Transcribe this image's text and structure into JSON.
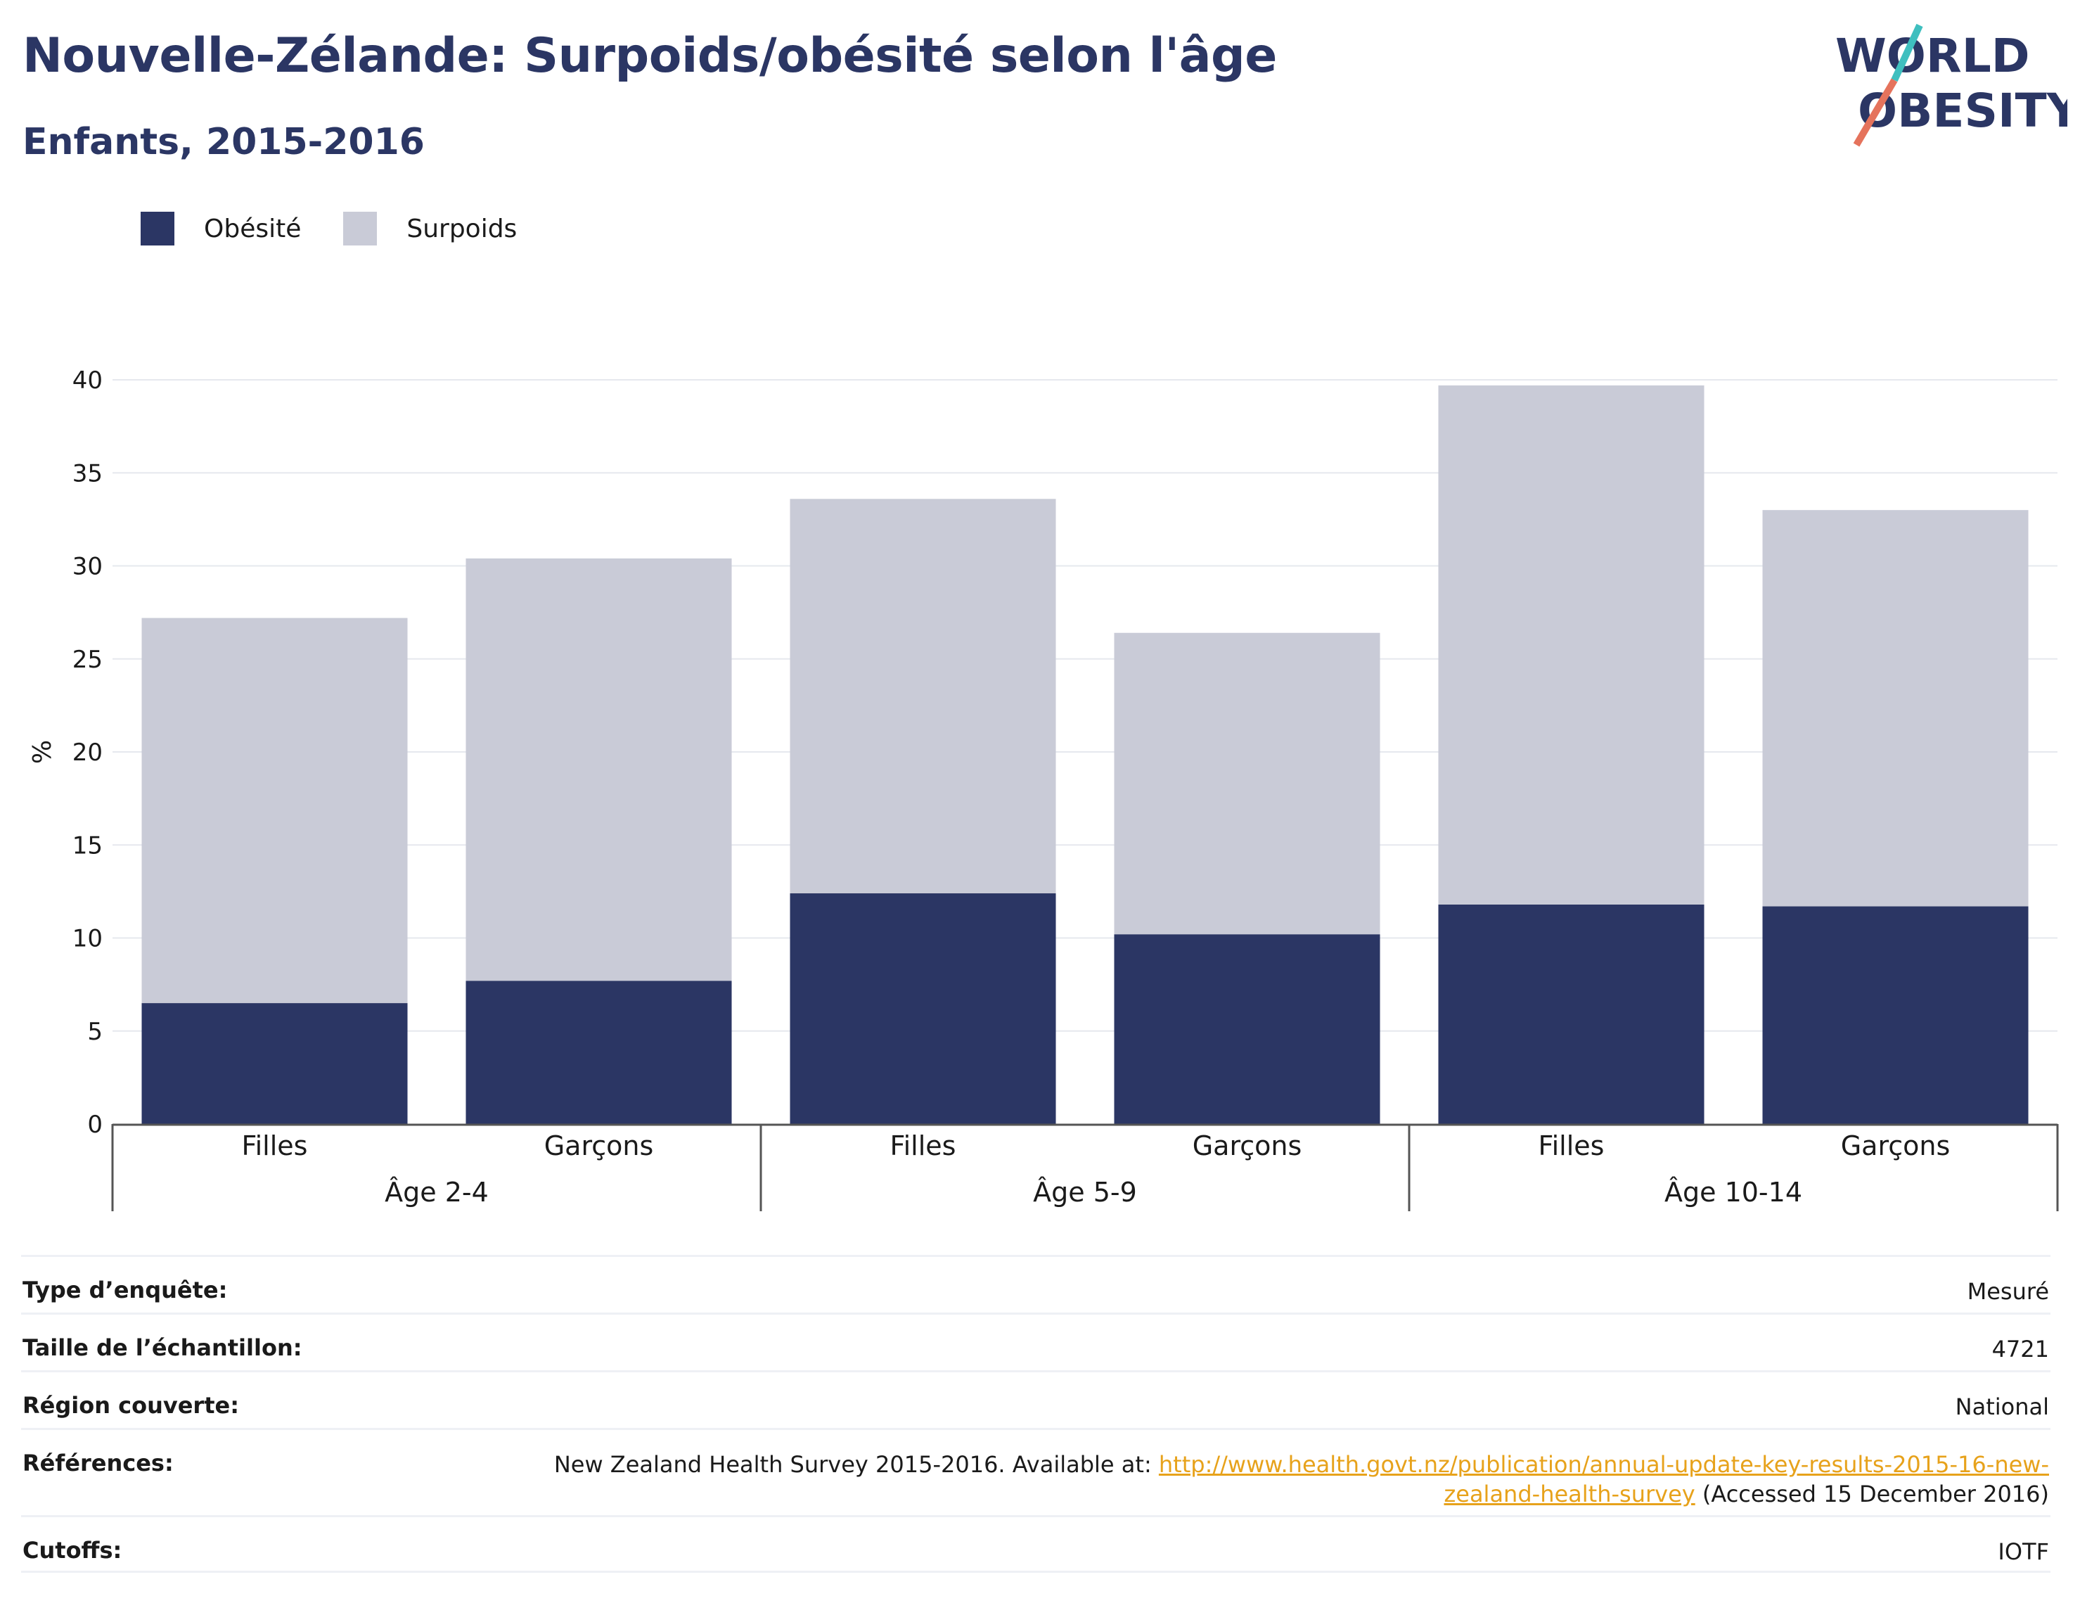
{
  "header": {
    "title": "Nouvelle-Zélande: Surpoids/obésité selon l'âge",
    "subtitle": "Enfants, 2015-2016"
  },
  "logo": {
    "line1": "WORLD",
    "line2": "OBESITY"
  },
  "legend": [
    {
      "label": "Obésité",
      "color": "#2b3664"
    },
    {
      "label": "Surpoids",
      "color": "#c9cbd7"
    }
  ],
  "chart_data": {
    "type": "bar",
    "stacked": true,
    "ylabel": "%",
    "ylim": [
      0,
      40
    ],
    "yticks": [
      0,
      5,
      10,
      15,
      20,
      25,
      30,
      35,
      40
    ],
    "grid": true,
    "legend_position": "top-left",
    "groups": [
      "Âge 2-4",
      "Âge 5-9",
      "Âge 10-14"
    ],
    "categories": [
      "Filles",
      "Garçons",
      "Filles",
      "Garçons",
      "Filles",
      "Garçons"
    ],
    "series": [
      {
        "name": "Obésité",
        "color": "#2b3664",
        "values": [
          6.5,
          7.7,
          12.4,
          10.2,
          11.8,
          11.7
        ]
      },
      {
        "name": "Surpoids",
        "color": "#c9cbd7",
        "values": [
          20.7,
          22.7,
          21.2,
          16.2,
          27.9,
          21.3
        ]
      }
    ]
  },
  "info": {
    "survey_type_label": "Type d’enquête:",
    "survey_type_value": "Mesuré",
    "sample_size_label": "Taille de l’échantillon:",
    "sample_size_value": "4721",
    "region_label": "Région couverte:",
    "region_value": "National",
    "references_label": "Références:",
    "references_prefix": "New Zealand Health Survey 2015-2016. Available at: ",
    "references_link": "http://www.health.govt.nz/publication/annual-update-key-results-2015-16-new-zealand-health-survey",
    "references_suffix": " (Accessed 15 December 2016)",
    "cutoffs_label": "Cutoffs:",
    "cutoffs_value": "IOTF"
  }
}
